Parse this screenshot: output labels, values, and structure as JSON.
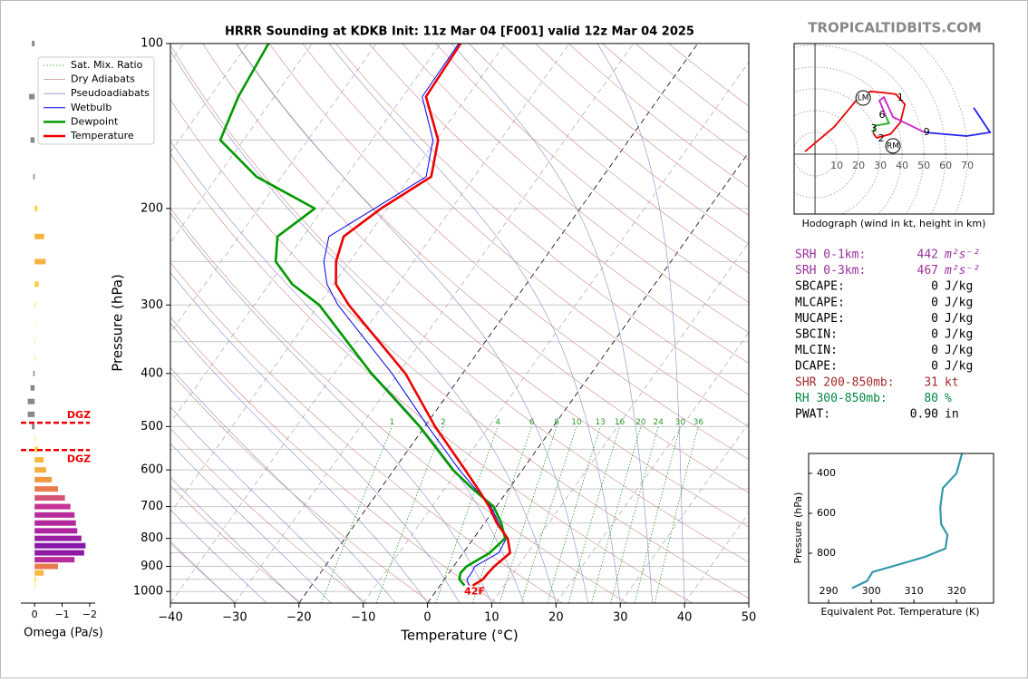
{
  "watermark": "TROPICALTIDBITS.COM",
  "chart_data": [
    {
      "type": "skew-t",
      "title": "HRRR Sounding at KDKB Init: 11z Mar 04 [F001] valid 12z Mar 04 2025",
      "xlabel": "Temperature (°C)",
      "ylabel": "Pressure (hPa)",
      "xlim": [
        -40,
        50
      ],
      "ylim": [
        100,
        1050
      ],
      "xticks": [
        {
          "value": -40,
          "label": "−40"
        },
        {
          "value": -30,
          "label": "−30"
        },
        {
          "value": -20,
          "label": "−20"
        },
        {
          "value": -10,
          "label": "−10"
        },
        0,
        10,
        20,
        30,
        40,
        50
      ],
      "yticks": [
        100,
        200,
        300,
        400,
        500,
        600,
        700,
        800,
        900,
        1000
      ],
      "yminor": [
        150,
        250,
        350,
        450,
        550,
        650,
        750,
        850,
        950
      ],
      "pressure": [
        975,
        950,
        925,
        900,
        850,
        800,
        750,
        700,
        650,
        600,
        500,
        400,
        300,
        275,
        250,
        225,
        200,
        175,
        150,
        125,
        100
      ],
      "background": [
        {
          "name": "Sat. Mix. Ratio",
          "color": "#2a9a2a"
        },
        {
          "name": "Dry Adiabats",
          "color": "#d08a8a"
        },
        {
          "name": "Pseudoadiabats",
          "color": "#8a8ad0"
        }
      ],
      "series": [
        {
          "name": "Wetbulb",
          "color": "#0000ee",
          "values": [
            4.5,
            3.5,
            3.5,
            3.3,
            5.5,
            5.1,
            2.2,
            -0.8,
            -5.2,
            -9.8,
            -19.5,
            -31,
            -47,
            -51,
            -54,
            -56,
            -52,
            -47.5,
            -50.5,
            -57,
            -57.2
          ]
        },
        {
          "name": "Dewpoint",
          "color": "#009900",
          "values": [
            3.8,
            2.3,
            1.8,
            2.0,
            4.1,
            4.9,
            2.6,
            -0.4,
            -5.6,
            -10.8,
            -20.8,
            -34.2,
            -49.9,
            -56.4,
            -61.5,
            -64.0,
            -61.3,
            -73.9,
            -83.6,
            -85.6,
            -86.8
          ]
        },
        {
          "name": "Temperature",
          "color": "#ee0000",
          "values": [
            5.1,
            6.0,
            6.1,
            6.3,
            7.3,
            5.3,
            1.9,
            -1.1,
            -4.8,
            -8.9,
            -18.4,
            -28.9,
            -45.3,
            -49.6,
            -52.1,
            -53.7,
            -51.0,
            -46.7,
            -49.7,
            -56.4,
            -56.9
          ]
        }
      ],
      "mixing_ratios": [
        1,
        2,
        4,
        6,
        8,
        10,
        13,
        16,
        20,
        24,
        30,
        36
      ],
      "surface_label": "42F"
    },
    {
      "type": "bar",
      "orientation": "horizontal",
      "xlabel": "Omega (Pa/s)",
      "xlim": [
        0.5,
        -2.2
      ],
      "ylim": [
        100,
        1050
      ],
      "xticks": [
        0,
        {
          "value": -1,
          "label": "−1"
        },
        {
          "value": -2,
          "label": "−2"
        }
      ],
      "pressure": [
        100,
        125,
        150,
        175,
        200,
        225,
        250,
        275,
        300,
        325,
        350,
        375,
        400,
        425,
        450,
        475,
        500,
        525,
        550,
        575,
        600,
        625,
        650,
        675,
        700,
        725,
        750,
        775,
        800,
        825,
        850,
        875,
        900,
        925,
        950,
        975
      ],
      "values": [
        0.1,
        0.2,
        0.15,
        0.05,
        -0.1,
        -0.35,
        -0.4,
        -0.15,
        -0.03,
        -0.01,
        -0.02,
        -0.02,
        0.05,
        0.15,
        0.25,
        0.25,
        0.1,
        -0.02,
        -0.12,
        -0.33,
        -0.42,
        -0.62,
        -0.85,
        -1.1,
        -1.3,
        -1.45,
        -1.5,
        -1.55,
        -1.7,
        -1.85,
        -1.8,
        -1.45,
        -0.85,
        -0.33,
        -0.05,
        -0.02
      ],
      "dgz": {
        "label": "DGZ",
        "pressure": [
          492,
          552
        ],
        "color": "#ee0000"
      }
    },
    {
      "type": "hodograph",
      "caption": "Hodograph (wind in kt, height in km)",
      "xlim": [
        -9.6,
        82
      ],
      "ylim": [
        -27.5,
        50.8
      ],
      "rings": [
        10,
        20,
        30,
        40,
        50,
        60,
        70
      ],
      "series": [
        {
          "color": "#ee0000",
          "u": [
            -4.6,
            8.8,
            19.2,
            25.4,
            31,
            37.1,
            41.3,
            39.2,
            34.6,
            28.3,
            26.7
          ],
          "v": [
            1.2,
            12.5,
            25,
            28.8,
            28.3,
            27.5,
            22.9,
            14.6,
            9.2,
            7.5,
            9.6
          ]
        },
        {
          "color": "#22aa22",
          "u": [
            26.7,
            27.5,
            34,
            32.5
          ],
          "v": [
            9.6,
            13,
            14.2,
            17.5
          ]
        },
        {
          "color": "#cc22cc",
          "u": [
            32.5,
            29.6,
            31.7,
            35.8,
            50.4
          ],
          "v": [
            17.5,
            24.6,
            26.2,
            17.1,
            10
          ]
        },
        {
          "color": "#2222ee",
          "u": [
            50.4,
            69.6,
            80.4,
            72.9
          ],
          "v": [
            10,
            8.3,
            10,
            21.3
          ]
        }
      ],
      "annotations": [
        {
          "text": "1",
          "u": 39.2,
          "v": 25.8
        },
        {
          "text": "6",
          "u": 30.8,
          "v": 17.9
        },
        {
          "text": "3",
          "u": 27.1,
          "v": 11.7
        },
        {
          "text": "2",
          "u": 30.4,
          "v": 7.1
        },
        {
          "text": "9",
          "u": 51.3,
          "v": 10
        }
      ],
      "storm_motion": [
        {
          "label": "LM",
          "u": 22.1,
          "v": 25.8
        },
        {
          "label": "RM",
          "u": 35.8,
          "v": 3.8
        }
      ]
    },
    {
      "type": "line",
      "xlabel": "Equivalent Pot. Temperature (K)",
      "ylabel": "Pressure (hPa)",
      "xlim": [
        285.3,
        328.7
      ],
      "ylim": [
        1050,
        300
      ],
      "xticks": [
        290,
        300,
        310,
        320
      ],
      "yticks": [
        400,
        600,
        800
      ],
      "color": "#3399aa",
      "pressure": [
        975,
        939,
        894,
        858,
        818,
        777,
        709,
        655,
        573,
        473,
        400,
        300
      ],
      "values": [
        295.5,
        299,
        300.3,
        306.2,
        312.6,
        317.4,
        317.9,
        316.4,
        316.2,
        316.8,
        320,
        321.3
      ]
    }
  ],
  "parameters": [
    {
      "label": "SRH 0-1km:",
      "value": 442,
      "unit": "m²s⁻²",
      "color": "#993399"
    },
    {
      "label": "SRH 0-3km:",
      "value": 467,
      "unit": "m²s⁻²",
      "color": "#993399"
    },
    {
      "label": "SBCAPE:",
      "value": 0,
      "unit": "J/kg",
      "color": "#000000"
    },
    {
      "label": "MLCAPE:",
      "value": 0,
      "unit": "J/kg",
      "color": "#000000"
    },
    {
      "label": "MUCAPE:",
      "value": 0,
      "unit": "J/kg",
      "color": "#000000"
    },
    {
      "label": "SBCIN:",
      "value": 0,
      "unit": "J/kg",
      "color": "#000000"
    },
    {
      "label": "MLCIN:",
      "value": 0,
      "unit": "J/kg",
      "color": "#000000"
    },
    {
      "label": "DCAPE:",
      "value": 0,
      "unit": "J/kg",
      "color": "#000000"
    },
    {
      "label": "SHR 200-850mb:",
      "value": 31,
      "unit": "kt",
      "color": "#a52a2a"
    },
    {
      "label": "RH 300-850mb:",
      "value": 80,
      "unit": "%",
      "color": "#008844"
    },
    {
      "label": "PWAT:",
      "value": 0.9,
      "value_label": "0.90",
      "unit": "in",
      "color": "#000000"
    }
  ]
}
